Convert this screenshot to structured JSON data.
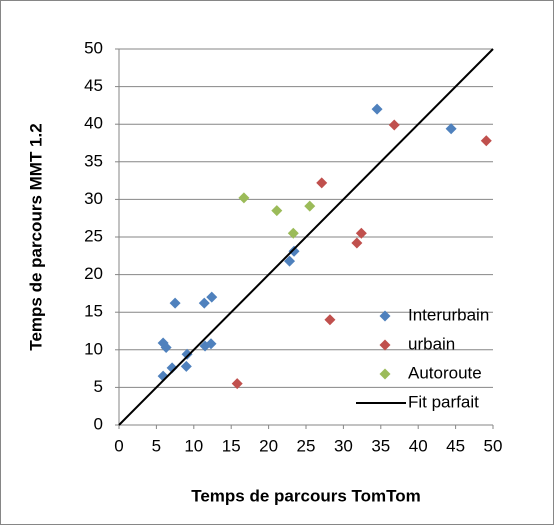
{
  "chart_data": {
    "type": "scatter",
    "xlabel": "Temps de parcours TomTom",
    "ylabel": "Temps de parcours MMT 1.2",
    "xlim": [
      0,
      50
    ],
    "ylim": [
      0,
      50
    ],
    "xticks": [
      0,
      5,
      10,
      15,
      20,
      25,
      30,
      35,
      40,
      45,
      50
    ],
    "yticks": [
      0,
      5,
      10,
      15,
      20,
      25,
      30,
      35,
      40,
      45,
      50
    ],
    "grid": true,
    "legend": "lower-right",
    "series": [
      {
        "name": "Interurbain",
        "color": "#4f81bd",
        "type": "scatter",
        "x": [
          34.5,
          44.4,
          23.4,
          22.8,
          7.5,
          11.4,
          12.4,
          5.9,
          6.3,
          11.5,
          12.3,
          9.1,
          7.1,
          9.0,
          5.9
        ],
        "values": [
          42,
          39.4,
          23.1,
          21.8,
          16.2,
          16.2,
          17.0,
          10.9,
          10.3,
          10.5,
          10.8,
          9.4,
          7.6,
          7.8,
          6.5
        ]
      },
      {
        "name": "urbain",
        "color": "#c0504d",
        "type": "scatter",
        "x": [
          36.8,
          49.1,
          27.1,
          32.4,
          31.8,
          28.2,
          15.8
        ],
        "values": [
          39.9,
          37.8,
          32.2,
          25.5,
          24.2,
          14.0,
          5.5
        ]
      },
      {
        "name": "Autoroute",
        "color": "#9bbb59",
        "type": "scatter",
        "x": [
          16.7,
          21.1,
          25.5,
          23.3
        ],
        "values": [
          30.2,
          28.5,
          29.1,
          25.5
        ]
      },
      {
        "name": "Fit parfait",
        "color": "#000000",
        "type": "line",
        "x": [
          0,
          50
        ],
        "values": [
          0,
          50
        ]
      }
    ]
  }
}
